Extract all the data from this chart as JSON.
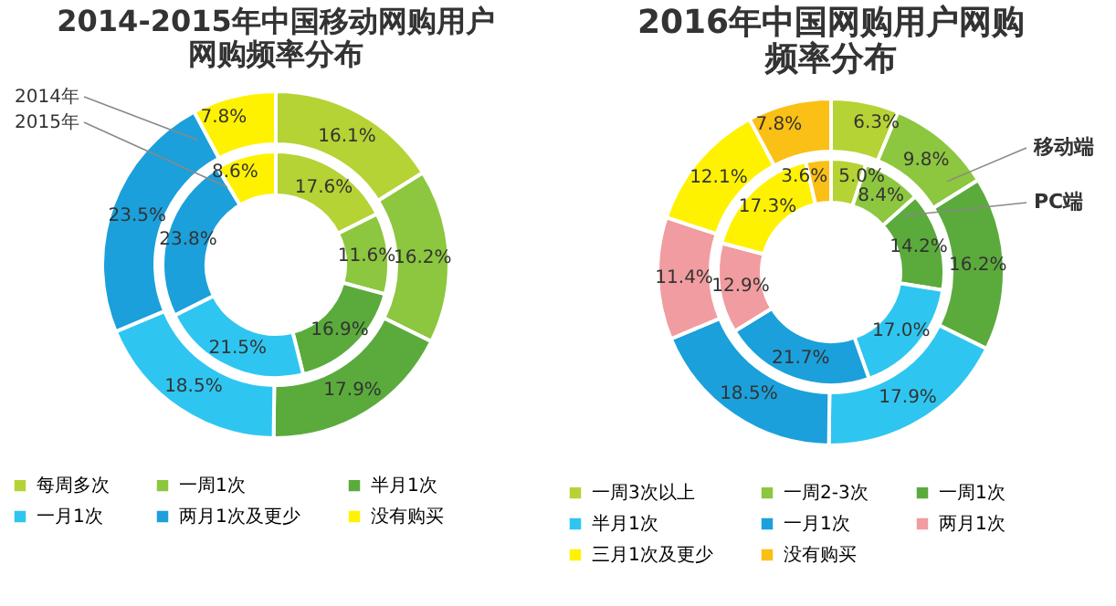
{
  "chart_data": [
    {
      "type": "donut",
      "title": "2014-2015年中国移动网购用户网购频率分布",
      "legend": "bottom",
      "categories": [
        "每周多次",
        "一周1次",
        "半月1次",
        "一月1次",
        "两月1次及更少",
        "没有购买"
      ],
      "colors": [
        "#b5d334",
        "#8dc63f",
        "#5aab3c",
        "#2ec6f0",
        "#1ba0db",
        "#fff200"
      ],
      "series": [
        {
          "name": "2014年",
          "values": [
            16.1,
            16.2,
            17.9,
            18.5,
            23.5,
            7.8
          ],
          "value_labels": [
            "16.1%",
            "16.2%",
            "17.9%",
            "18.5%",
            "23.5%",
            "7.8%"
          ]
        },
        {
          "name": "2015年",
          "values": [
            17.6,
            11.6,
            16.9,
            21.5,
            23.8,
            8.6
          ],
          "value_labels": [
            "17.6%",
            "11.6%",
            "16.9%",
            "21.5%",
            "23.8%",
            "8.6%"
          ]
        }
      ]
    },
    {
      "type": "donut",
      "title": "2016年中国网购用户网购频率分布",
      "legend": "bottom",
      "categories": [
        "一周3次以上",
        "一周2-3次",
        "一周1次",
        "半月1次",
        "一月1次",
        "两月1次",
        "三月1次及更少",
        "没有购买"
      ],
      "colors": [
        "#b5d334",
        "#8dc63f",
        "#5aab3c",
        "#2ec6f0",
        "#1ba0db",
        "#f19ca0",
        "#fff200",
        "#fbc015"
      ],
      "series": [
        {
          "name": "移动端",
          "values": [
            6.3,
            9.8,
            16.2,
            17.9,
            18.5,
            11.4,
            12.1,
            7.8
          ],
          "value_labels": [
            "6.3%",
            "9.8%",
            "16.2%",
            "17.9%",
            "18.5%",
            "11.4%",
            "12.1%",
            "7.8%"
          ]
        },
        {
          "name": "PC端",
          "values": [
            5.0,
            8.4,
            14.2,
            17.0,
            21.7,
            12.9,
            17.3,
            3.6
          ],
          "value_labels": [
            "5.0%",
            "8.4%",
            "14.2%",
            "17.0%",
            "21.7%",
            "12.9%",
            "17.3%",
            "3.6%"
          ]
        }
      ]
    }
  ]
}
